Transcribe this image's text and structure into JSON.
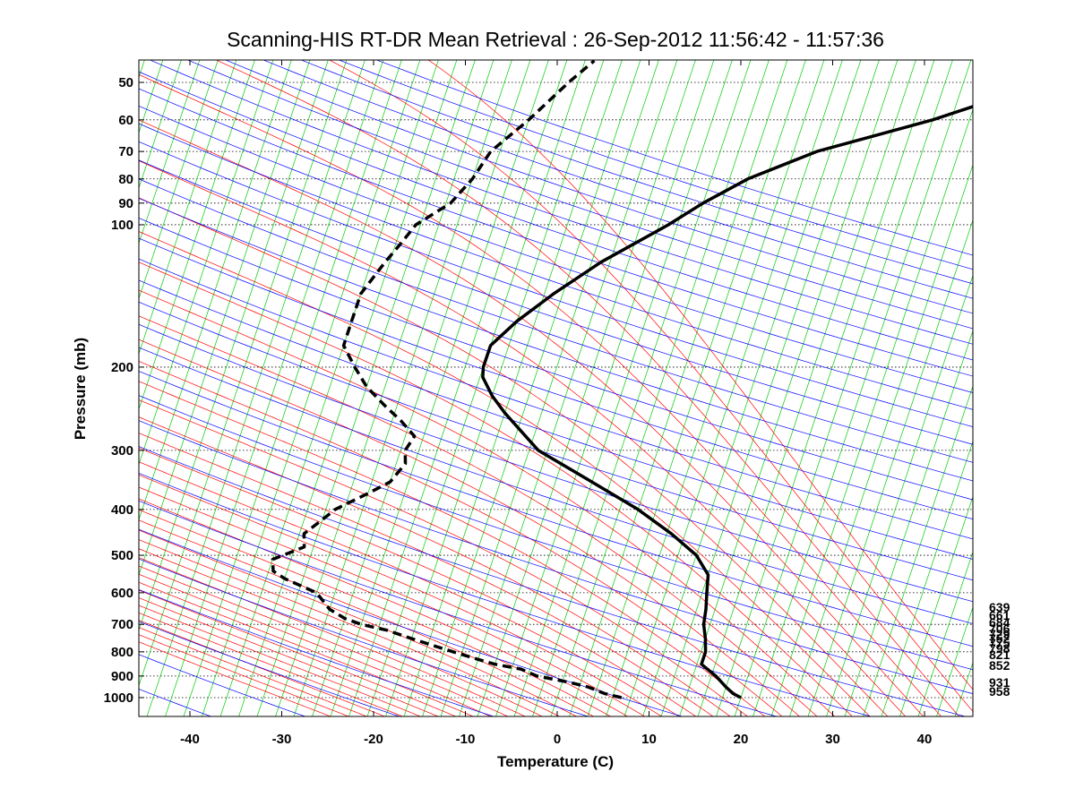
{
  "chart_data": {
    "type": "line",
    "subtype": "skew-t log-p thermodynamic diagram",
    "title": "Scanning-HIS RT-DR Mean Retrieval : 26-Sep-2012 11:56:42 - 11:57:36",
    "xlabel": "Temperature (C)",
    "ylabel": "Pressure (mb)",
    "xlim": [
      -45,
      45
    ],
    "ylim": [
      45,
      1075
    ],
    "y_scale": "log",
    "x_ticks": [
      -40,
      -30,
      -20,
      -10,
      0,
      10,
      20,
      30,
      40
    ],
    "y_ticks": [
      50,
      60,
      70,
      80,
      90,
      100,
      200,
      300,
      400,
      500,
      600,
      700,
      800,
      900,
      1000
    ],
    "grid": "horizontal dotted at pressure ticks",
    "colors": {
      "temperature": "#000000",
      "dewpoint": "#000000",
      "isotherms": "#00cc00",
      "dry_adiabats": "#0000ff",
      "moist_adiabats": "#ff0000",
      "grid": "#000000"
    },
    "series": [
      {
        "name": "Temperature",
        "style": "solid",
        "pressure": [
          1000,
          980,
          950,
          900,
          850,
          800,
          780,
          750,
          700,
          650,
          600,
          550,
          500,
          450,
          400,
          350,
          300,
          250,
          230,
          210,
          200,
          180,
          160,
          140,
          120,
          100,
          90,
          80,
          70,
          60,
          50,
          45
        ],
        "values": [
          20,
          19,
          18,
          16.5,
          14.5,
          14.5,
          14.3,
          14,
          13.3,
          13,
          12.5,
          12,
          10,
          6.5,
          2,
          -4,
          -11,
          -16,
          -18,
          -19.7,
          -20,
          -20,
          -18,
          -15,
          -11,
          -5,
          -2,
          2,
          8.5,
          20,
          31,
          40
        ]
      },
      {
        "name": "Dewpoint",
        "style": "dashed",
        "pressure": [
          1000,
          980,
          950,
          930,
          900,
          870,
          850,
          830,
          800,
          780,
          750,
          720,
          700,
          680,
          650,
          600,
          560,
          540,
          510,
          500,
          480,
          450,
          420,
          400,
          370,
          350,
          320,
          300,
          280,
          260,
          240,
          220,
          200,
          180,
          160,
          140,
          120,
          110,
          100,
          90,
          80,
          70,
          60,
          50,
          45
        ],
        "values": [
          7,
          5,
          3,
          1,
          -3,
          -5,
          -8,
          -10,
          -13,
          -15,
          -18,
          -21,
          -24,
          -26,
          -28,
          -30,
          -34,
          -35.5,
          -36,
          -35,
          -33,
          -33.5,
          -32,
          -31,
          -28,
          -26,
          -25,
          -25.5,
          -25,
          -27,
          -29.5,
          -32,
          -34,
          -36,
          -36,
          -36,
          -34.5,
          -33.5,
          -32.5,
          -29.5,
          -28,
          -27,
          -24,
          -21,
          -19
        ]
      }
    ],
    "right_labels": [
      "639",
      "661",
      "684",
      "706",
      "729",
      "752",
      "775",
      "798",
      "821",
      "852",
      "931",
      "958"
    ]
  }
}
